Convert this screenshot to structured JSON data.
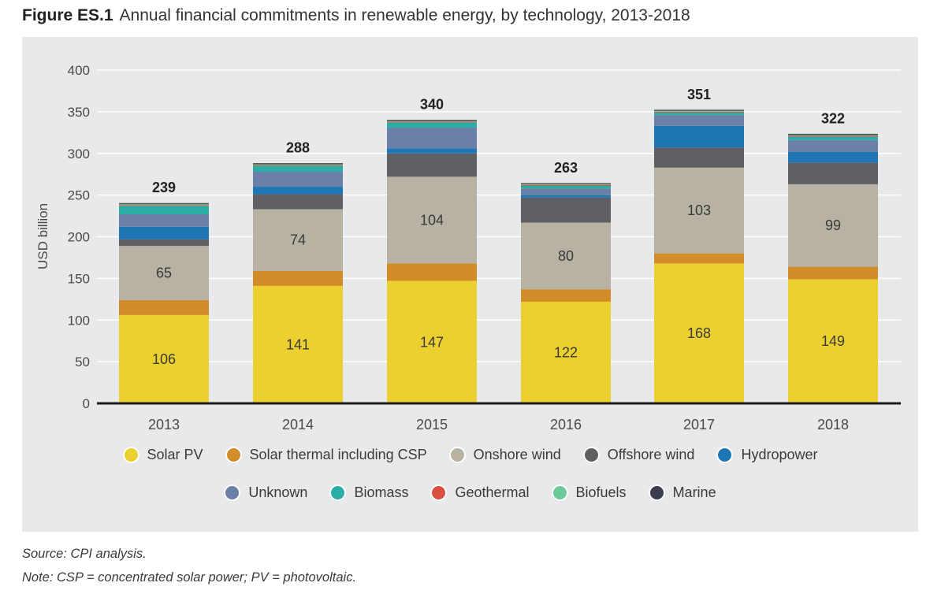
{
  "figure": {
    "label": "Figure ES.1",
    "title": "Annual financial commitments in renewable energy, by technology, 2013-2018"
  },
  "footnotes": {
    "source": "Source: CPI analysis.",
    "note": "Note: CSP = concentrated solar power; PV = photovoltaic."
  },
  "chart_data": {
    "type": "bar",
    "stacked": true,
    "categories": [
      "2013",
      "2014",
      "2015",
      "2016",
      "2017",
      "2018"
    ],
    "ylabel": "USD billion",
    "ylim": [
      0,
      400
    ],
    "yticks": [
      0,
      50,
      100,
      150,
      200,
      250,
      300,
      350,
      400
    ],
    "grid": true,
    "legend_position": "bottom",
    "totals": [
      239,
      288,
      340,
      263,
      351,
      322
    ],
    "series": [
      {
        "name": "Solar PV",
        "color": "#ecd02f",
        "values": [
          106,
          141,
          147,
          122,
          168,
          149
        ],
        "labeled": true
      },
      {
        "name": "Solar thermal including CSP",
        "color": "#d38c2a",
        "values": [
          18,
          18,
          21,
          15,
          12,
          15
        ]
      },
      {
        "name": "Onshore wind",
        "color": "#b7b2a3",
        "values": [
          65,
          74,
          104,
          80,
          103,
          99
        ],
        "labeled": true
      },
      {
        "name": "Offshore wind",
        "color": "#5e6063",
        "values": [
          8,
          18,
          28,
          30,
          24,
          26
        ]
      },
      {
        "name": "Hydropower",
        "color": "#1f76b4",
        "values": [
          15,
          9,
          6,
          3,
          26,
          13
        ]
      },
      {
        "name": "Unknown",
        "color": "#6b80a6",
        "values": [
          15,
          18,
          25,
          8,
          13,
          14
        ]
      },
      {
        "name": "Biomass",
        "color": "#2bada8",
        "values": [
          10,
          7,
          6,
          3,
          3,
          4
        ]
      },
      {
        "name": "Geothermal",
        "color": "#d9503f",
        "values": [
          1,
          1,
          1,
          1,
          1,
          1
        ]
      },
      {
        "name": "Biofuels",
        "color": "#6dc996",
        "values": [
          1,
          1,
          1,
          1,
          1,
          1
        ]
      },
      {
        "name": "Marine",
        "color": "#3a3e55",
        "values": [
          1,
          1,
          1,
          1,
          1,
          1
        ]
      }
    ]
  }
}
